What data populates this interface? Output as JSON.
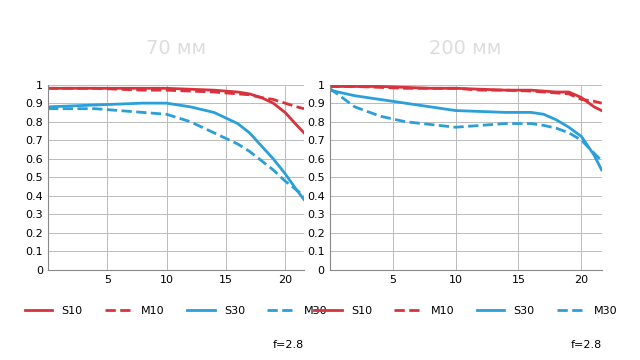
{
  "chart_data": [
    {
      "type": "line",
      "title": "70 мм",
      "annotation": "f=2.8",
      "x": [
        0,
        2,
        4,
        6,
        8,
        10,
        12,
        14,
        16,
        17,
        18,
        19,
        20,
        21,
        21.6
      ],
      "xlim": [
        0,
        21.6
      ],
      "xticks": [
        5,
        10,
        15,
        20
      ],
      "ylim": [
        0,
        1
      ],
      "yticks": [
        0,
        0.1,
        0.2,
        0.3,
        0.4,
        0.5,
        0.6,
        0.7,
        0.8,
        0.9,
        1
      ],
      "grid": true,
      "legend": "lower center",
      "series": [
        {
          "name": "S10",
          "color": "#d9323c",
          "line_style": "solid",
          "values": [
            0.98,
            0.98,
            0.98,
            0.98,
            0.98,
            0.98,
            0.975,
            0.97,
            0.96,
            0.95,
            0.93,
            0.9,
            0.85,
            0.78,
            0.74
          ]
        },
        {
          "name": "M10",
          "color": "#d9323c",
          "line_style": "dashed",
          "values": [
            0.98,
            0.98,
            0.98,
            0.975,
            0.97,
            0.97,
            0.965,
            0.96,
            0.95,
            0.945,
            0.93,
            0.92,
            0.9,
            0.88,
            0.87
          ]
        },
        {
          "name": "S30",
          "color": "#2a9fd8",
          "line_style": "solid",
          "values": [
            0.88,
            0.885,
            0.89,
            0.895,
            0.9,
            0.9,
            0.88,
            0.85,
            0.79,
            0.74,
            0.67,
            0.6,
            0.52,
            0.43,
            0.38
          ]
        },
        {
          "name": "M30",
          "color": "#2a9fd8",
          "line_style": "dashed",
          "values": [
            0.87,
            0.87,
            0.87,
            0.86,
            0.85,
            0.84,
            0.8,
            0.74,
            0.68,
            0.64,
            0.59,
            0.54,
            0.48,
            0.43,
            0.4
          ]
        }
      ]
    },
    {
      "type": "line",
      "title": "200 мм",
      "annotation": "f=2.8",
      "x": [
        0,
        2,
        4,
        6,
        8,
        10,
        12,
        14,
        16,
        17,
        18,
        19,
        20,
        21,
        21.6
      ],
      "xlim": [
        0,
        21.6
      ],
      "xticks": [
        5,
        10,
        15,
        20
      ],
      "ylim": [
        0,
        1
      ],
      "yticks": [
        0,
        0.1,
        0.2,
        0.3,
        0.4,
        0.5,
        0.6,
        0.7,
        0.8,
        0.9,
        1
      ],
      "grid": true,
      "legend": "lower center",
      "series": [
        {
          "name": "S10",
          "color": "#d9323c",
          "line_style": "solid",
          "values": [
            0.99,
            0.99,
            0.99,
            0.985,
            0.98,
            0.98,
            0.975,
            0.97,
            0.97,
            0.965,
            0.96,
            0.96,
            0.93,
            0.88,
            0.86
          ]
        },
        {
          "name": "M10",
          "color": "#d9323c",
          "line_style": "dashed",
          "values": [
            0.99,
            0.99,
            0.985,
            0.98,
            0.98,
            0.98,
            0.97,
            0.97,
            0.965,
            0.96,
            0.955,
            0.95,
            0.92,
            0.91,
            0.9
          ]
        },
        {
          "name": "S30",
          "color": "#2a9fd8",
          "line_style": "solid",
          "values": [
            0.97,
            0.94,
            0.92,
            0.9,
            0.88,
            0.86,
            0.855,
            0.85,
            0.85,
            0.84,
            0.81,
            0.77,
            0.72,
            0.62,
            0.54
          ]
        },
        {
          "name": "M30",
          "color": "#2a9fd8",
          "line_style": "dashed",
          "values": [
            0.98,
            0.88,
            0.83,
            0.8,
            0.785,
            0.77,
            0.78,
            0.79,
            0.79,
            0.78,
            0.765,
            0.74,
            0.7,
            0.63,
            0.59
          ]
        }
      ]
    }
  ]
}
